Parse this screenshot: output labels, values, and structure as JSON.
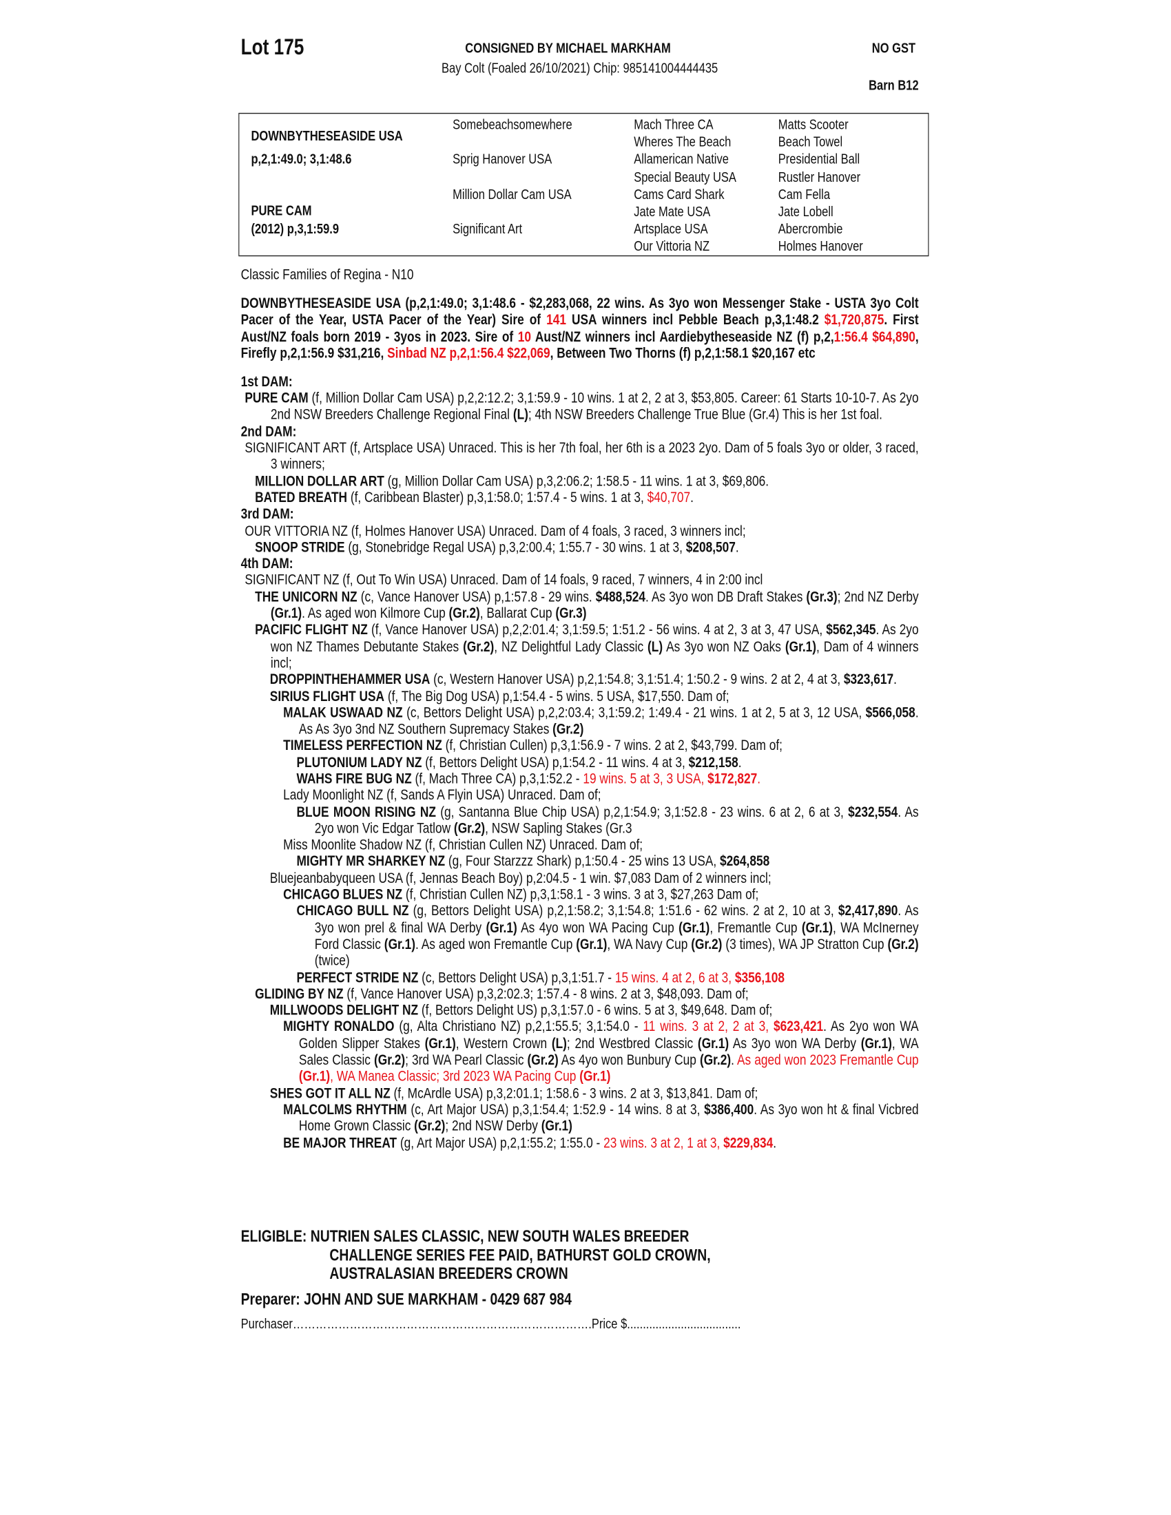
{
  "header": {
    "lot": "Lot 175",
    "consigned": "CONSIGNED BY MICHAEL MARKHAM",
    "description": "Bay Colt (Foaled 26/10/2021) Chip: 985141004444435",
    "gst": "NO GST",
    "barn": "Barn B12"
  },
  "pedigree": {
    "sire": "DOWNBYTHESEASIDE USA",
    "sire_record": "p,2,1:49.0; 3,1:48.6",
    "dam": "PURE CAM",
    "dam_record": "(2012) p,3,1:59.9",
    "gen2": [
      "Somebeachsomewhere",
      "Sprig Hanover USA",
      "Million Dollar Cam USA",
      "Significant Art"
    ],
    "gen3": [
      "Mach Three CA",
      "Wheres The Beach",
      "Allamerican Native",
      "Special Beauty USA",
      "Cams Card Shark",
      "Jate Mate USA",
      "Artsplace USA",
      "Our Vittoria NZ"
    ],
    "gen4": [
      "Matts Scooter",
      "Beach Towel",
      "Presidential Ball",
      "Rustler Hanover",
      "Cam Fella",
      "Jate Lobell",
      "Abercrombie",
      "Holmes Hanover"
    ]
  },
  "family": "Classic Families of Regina - N10",
  "colors": {
    "highlight": "#e8141b",
    "text": "#111111"
  },
  "sire_paragraph": [
    {
      "t": "DOWNBYTHESEASIDE USA (p,2,1:49.0; 3,1:48.6 - $2,283,068, 22 wins. As 3yo won Messenger Stake - USTA 3yo Colt Pacer of the Year, USTA Pacer of the Year) Sire of ",
      "s": ""
    },
    {
      "t": "141",
      "s": "r"
    },
    {
      "t": " USA winners incl Pebble Beach p,3,1:48.2 ",
      "s": ""
    },
    {
      "t": "$1,720,875",
      "s": "r"
    },
    {
      "t": ". First Aust/NZ foals born 2019 - 3yos in 2023. Sire of ",
      "s": ""
    },
    {
      "t": "10",
      "s": "r"
    },
    {
      "t": " Aust/NZ winners incl Aardiebytheseaside NZ (f) p,2,",
      "s": ""
    },
    {
      "t": "1:56.4 $64,890",
      "s": "r"
    },
    {
      "t": ", Firefly p,2,1:56.9 $31,216, ",
      "s": ""
    },
    {
      "t": "Sinbad NZ p,2,1:56.4 $22,069",
      "s": "r"
    },
    {
      "t": ", Between Two Thorns (f) p,2,1:58.1 $20,167 etc",
      "s": ""
    }
  ],
  "entries": [
    {
      "level": "h",
      "segs": [
        {
          "t": "1st DAM:",
          "s": ""
        }
      ]
    },
    {
      "level": 0,
      "segs": [
        {
          "t": "PURE CAM",
          "s": "b"
        },
        {
          "t": " (f, Million Dollar Cam USA) p,2,2:12.2; 3,1:59.9 - 10 wins. 1 at 2, 2 at 3, $53,805. Career: 61 Starts 10-10-7. As 2yo 2nd NSW Breeders Challenge Regional Final ",
          "s": ""
        },
        {
          "t": "(L)",
          "s": "b"
        },
        {
          "t": "; 4th NSW Breeders Challenge True Blue (Gr.4) This is her 1st foal.",
          "s": ""
        }
      ]
    },
    {
      "level": "h",
      "segs": [
        {
          "t": "2nd DAM:",
          "s": ""
        }
      ]
    },
    {
      "level": 0,
      "segs": [
        {
          "t": "SIGNIFICANT ART (f, Artsplace USA) Unraced. This is her 7th foal, her 6th is a 2023 2yo. Dam of 5 foals 3yo or older, 3 raced, 3 winners;",
          "s": ""
        }
      ]
    },
    {
      "level": 1,
      "segs": [
        {
          "t": "MILLION DOLLAR ART",
          "s": "b"
        },
        {
          "t": " (g, Million Dollar Cam USA) p,3,2:06.2; 1:58.5 - 11 wins. 1 at 3, $69,806.",
          "s": ""
        }
      ]
    },
    {
      "level": 1,
      "segs": [
        {
          "t": "BATED BREATH",
          "s": "b"
        },
        {
          "t": " (f, Caribbean Blaster) p,3,1:58.0; 1:57.4 - 5 wins. 1 at 3, ",
          "s": ""
        },
        {
          "t": "$40,707",
          "s": "r"
        },
        {
          "t": ".",
          "s": ""
        }
      ]
    },
    {
      "level": "h",
      "segs": [
        {
          "t": "3rd DAM:",
          "s": ""
        }
      ]
    },
    {
      "level": 0,
      "segs": [
        {
          "t": "OUR VITTORIA NZ (f, Holmes Hanover USA) Unraced. Dam of 4 foals, 3 raced, 3 winners incl;",
          "s": ""
        }
      ]
    },
    {
      "level": 1,
      "segs": [
        {
          "t": "SNOOP STRIDE",
          "s": "b"
        },
        {
          "t": " (g, Stonebridge Regal USA) p,3,2:00.4; 1:55.7 - 30 wins. 1 at 3, ",
          "s": ""
        },
        {
          "t": "$208,507",
          "s": "b"
        },
        {
          "t": ".",
          "s": ""
        }
      ]
    },
    {
      "level": "h",
      "segs": [
        {
          "t": "4th DAM:",
          "s": ""
        }
      ]
    },
    {
      "level": 0,
      "segs": [
        {
          "t": "SIGNIFICANT NZ (f, Out To Win USA) Unraced. Dam of 14 foals, 9 raced, 7 winners, 4 in 2:00 incl",
          "s": ""
        }
      ]
    },
    {
      "level": 1,
      "segs": [
        {
          "t": "THE UNICORN NZ",
          "s": "b"
        },
        {
          "t": " (c, Vance Hanover USA) p,1:57.8 - 29 wins. ",
          "s": ""
        },
        {
          "t": "$488,524",
          "s": "b"
        },
        {
          "t": ". As 3yo won DB Draft Stakes ",
          "s": ""
        },
        {
          "t": "(Gr.3)",
          "s": "b"
        },
        {
          "t": "; 2nd NZ Derby ",
          "s": ""
        },
        {
          "t": "(Gr.1)",
          "s": "b"
        },
        {
          "t": ". As aged won Kilmore Cup ",
          "s": ""
        },
        {
          "t": "(Gr.2)",
          "s": "b"
        },
        {
          "t": ", Ballarat Cup ",
          "s": ""
        },
        {
          "t": "(Gr.3)",
          "s": "b"
        }
      ]
    },
    {
      "level": 1,
      "segs": [
        {
          "t": "PACIFIC FLIGHT NZ",
          "s": "b"
        },
        {
          "t": " (f, Vance Hanover USA) p,2,2:01.4; 3,1:59.5; 1:51.2 - 56 wins. 4 at 2, 3 at 3, 47 USA, ",
          "s": ""
        },
        {
          "t": "$562,345",
          "s": "b"
        },
        {
          "t": ". As 2yo won NZ Thames Debutante Stakes ",
          "s": ""
        },
        {
          "t": "(Gr.2)",
          "s": "b"
        },
        {
          "t": ", NZ Delightful Lady Classic ",
          "s": ""
        },
        {
          "t": "(L)",
          "s": "b"
        },
        {
          "t": " As 3yo won NZ Oaks ",
          "s": ""
        },
        {
          "t": "(Gr.1)",
          "s": "b"
        },
        {
          "t": ", Dam of 4 winners incl;",
          "s": ""
        }
      ]
    },
    {
      "level": 2,
      "segs": [
        {
          "t": "DROPPINTHEHAMMER USA",
          "s": "b"
        },
        {
          "t": " (c, Western Hanover USA) p,2,1:54.8; 3,1:51.4; 1:50.2 - 9 wins. 2 at 2, 4 at 3, ",
          "s": ""
        },
        {
          "t": "$323,617",
          "s": "b"
        },
        {
          "t": ".",
          "s": ""
        }
      ]
    },
    {
      "level": 2,
      "segs": [
        {
          "t": "SIRIUS FLIGHT USA",
          "s": "b"
        },
        {
          "t": " (f, The Big Dog USA) p,1:54.4 - 5 wins. 5 USA, $17,550. Dam of;",
          "s": ""
        }
      ]
    },
    {
      "level": 3,
      "segs": [
        {
          "t": "MALAK USWAAD NZ",
          "s": "b"
        },
        {
          "t": " (c, Bettors Delight USA) p,2,2:03.4; 3,1:59.2; 1:49.4 - 21 wins. 1 at 2, 5 at 3, 12 USA, ",
          "s": ""
        },
        {
          "t": "$566,058",
          "s": "b"
        },
        {
          "t": ". As As 3yo 3nd NZ Southern Supremacy Stakes ",
          "s": ""
        },
        {
          "t": "(Gr.2)",
          "s": "b"
        }
      ]
    },
    {
      "level": 3,
      "segs": [
        {
          "t": "TIMELESS PERFECTION NZ",
          "s": "b"
        },
        {
          "t": " (f, Christian Cullen) p,3,1:56.9 - 7 wins. 2 at 2, $43,799. Dam of;",
          "s": ""
        }
      ]
    },
    {
      "level": 4,
      "segs": [
        {
          "t": "PLUTONIUM LADY NZ",
          "s": "b"
        },
        {
          "t": " (f, Bettors Delight USA) p,1:54.2 - 11 wins. 4 at 3, ",
          "s": ""
        },
        {
          "t": "$212,158",
          "s": "b"
        },
        {
          "t": ".",
          "s": ""
        }
      ]
    },
    {
      "level": 4,
      "segs": [
        {
          "t": "WAHS FIRE BUG NZ",
          "s": "b"
        },
        {
          "t": " (f, Mach Three CA) p,3,1:52.2 - ",
          "s": ""
        },
        {
          "t": "19 wins. 5 at 3, 3 USA, ",
          "s": "r"
        },
        {
          "t": "$172,827",
          "s": "rb"
        },
        {
          "t": ".",
          "s": "r"
        }
      ]
    },
    {
      "level": 3,
      "segs": [
        {
          "t": "Lady Moonlight NZ (f, Sands A Flyin USA) Unraced. Dam of;",
          "s": ""
        }
      ]
    },
    {
      "level": 4,
      "segs": [
        {
          "t": "BLUE MOON RISING NZ",
          "s": "b"
        },
        {
          "t": " (g, Santanna Blue Chip USA) p,2,1:54.9; 3,1:52.8 - 23 wins. 6 at 2, 6 at 3, ",
          "s": ""
        },
        {
          "t": "$232,554",
          "s": "b"
        },
        {
          "t": ". As 2yo won Vic Edgar Tatlow ",
          "s": ""
        },
        {
          "t": "(Gr.2)",
          "s": "b"
        },
        {
          "t": ", NSW Sapling Stakes (Gr.3",
          "s": ""
        }
      ]
    },
    {
      "level": 3,
      "segs": [
        {
          "t": "Miss Moonlite Shadow NZ (f, Christian Cullen NZ) Unraced. Dam of;",
          "s": ""
        }
      ]
    },
    {
      "level": 4,
      "segs": [
        {
          "t": "MIGHTY MR SHARKEY NZ",
          "s": "b"
        },
        {
          "t": " (g, Four Starzzz Shark) p,1:50.4 - 25 wins 13 USA, ",
          "s": ""
        },
        {
          "t": "$264,858",
          "s": "b"
        }
      ]
    },
    {
      "level": 2,
      "segs": [
        {
          "t": "Bluejeanbabyqueen USA (f, Jennas Beach Boy) p,2:04.5 - 1 win. $7,083 Dam of 2 winners incl;",
          "s": ""
        }
      ]
    },
    {
      "level": 3,
      "segs": [
        {
          "t": "CHICAGO BLUES NZ",
          "s": "b"
        },
        {
          "t": " (f, Christian Cullen NZ) p,3,1:58.1 - 3 wins. 3 at 3, $27,263 Dam of;",
          "s": ""
        }
      ]
    },
    {
      "level": 4,
      "segs": [
        {
          "t": "CHICAGO BULL NZ",
          "s": "b"
        },
        {
          "t": " (g, Bettors Delight USA) p,2,1:58.2; 3,1:54.8; 1:51.6 - 62 wins. 2 at 2, 10 at 3, ",
          "s": ""
        },
        {
          "t": "$2,417,890",
          "s": "b"
        },
        {
          "t": ". As 3yo won prel & final WA Derby ",
          "s": ""
        },
        {
          "t": "(Gr.1)",
          "s": "b"
        },
        {
          "t": " As 4yo won WA Pacing Cup ",
          "s": ""
        },
        {
          "t": "(Gr.1)",
          "s": "b"
        },
        {
          "t": ", Fremantle Cup ",
          "s": ""
        },
        {
          "t": "(Gr.1)",
          "s": "b"
        },
        {
          "t": ", WA McInerney Ford Classic ",
          "s": ""
        },
        {
          "t": "(Gr.1)",
          "s": "b"
        },
        {
          "t": ". As aged won Fremantle Cup ",
          "s": ""
        },
        {
          "t": "(Gr.1)",
          "s": "b"
        },
        {
          "t": ", WA Navy Cup ",
          "s": ""
        },
        {
          "t": "(Gr.2)",
          "s": "b"
        },
        {
          "t": " (3 times), WA JP Stratton Cup ",
          "s": ""
        },
        {
          "t": "(Gr.2)",
          "s": "b"
        },
        {
          "t": " (twice)",
          "s": ""
        }
      ]
    },
    {
      "level": 4,
      "segs": [
        {
          "t": "PERFECT STRIDE NZ",
          "s": "b"
        },
        {
          "t": " (c, Bettors Delight USA) p,3,1:51.7 - ",
          "s": ""
        },
        {
          "t": "15 wins. 4 at 2, 6 at 3, ",
          "s": "r"
        },
        {
          "t": "$356,108",
          "s": "rb"
        }
      ]
    },
    {
      "level": 1,
      "segs": [
        {
          "t": "GLIDING BY NZ",
          "s": "b"
        },
        {
          "t": " (f, Vance Hanover USA) p,3,2:02.3; 1:57.4 - 8 wins. 2 at 3, $48,093. Dam of;",
          "s": ""
        }
      ]
    },
    {
      "level": 2,
      "segs": [
        {
          "t": "MILLWOODS DELIGHT NZ",
          "s": "b"
        },
        {
          "t": " (f, Bettors Delight US) p,3,1:57.0 - 6 wins. 5 at 3, $49,648. Dam of;",
          "s": ""
        }
      ]
    },
    {
      "level": 3,
      "segs": [
        {
          "t": "MIGHTY RONALDO",
          "s": "b"
        },
        {
          "t": " (g, Alta Christiano NZ) p,2,1:55.5; 3,1:54.0 - ",
          "s": ""
        },
        {
          "t": "11 wins. 3 at 2, 2 at 3, ",
          "s": "r"
        },
        {
          "t": "$623,421",
          "s": "rb"
        },
        {
          "t": ". As 2yo won WA Golden Slipper Stakes ",
          "s": ""
        },
        {
          "t": "(Gr.1)",
          "s": "b"
        },
        {
          "t": ", Western Crown ",
          "s": ""
        },
        {
          "t": "(L)",
          "s": "b"
        },
        {
          "t": "; 2nd Westbred Classic ",
          "s": ""
        },
        {
          "t": "(Gr.1)",
          "s": "b"
        },
        {
          "t": " As 3yo won WA Derby ",
          "s": ""
        },
        {
          "t": "(Gr.1)",
          "s": "b"
        },
        {
          "t": ", WA Sales Classic ",
          "s": ""
        },
        {
          "t": "(Gr.2)",
          "s": "b"
        },
        {
          "t": "; 3rd WA Pearl Classic ",
          "s": ""
        },
        {
          "t": "(Gr.2)",
          "s": "b"
        },
        {
          "t": " As 4yo won Bunbury Cup ",
          "s": ""
        },
        {
          "t": "(Gr.2)",
          "s": "b"
        },
        {
          "t": ". ",
          "s": ""
        },
        {
          "t": "As aged won 2023 Fremantle Cup ",
          "s": "r"
        },
        {
          "t": "(Gr.1)",
          "s": "rb"
        },
        {
          "t": ", WA Manea Classic; 3rd 2023 WA Pacing Cup ",
          "s": "r"
        },
        {
          "t": "(Gr.1)",
          "s": "rb"
        }
      ]
    },
    {
      "level": 2,
      "segs": [
        {
          "t": "SHES GOT IT ALL NZ",
          "s": "b"
        },
        {
          "t": " (f, McArdle USA) p,3,2:01.1; 1:58.6 - 3 wins. 2 at 3, $13,841. Dam of;",
          "s": ""
        }
      ]
    },
    {
      "level": 3,
      "segs": [
        {
          "t": "MALCOLMS RHYTHM",
          "s": "b"
        },
        {
          "t": " (c, Art Major USA) p,3,1:54.4; 1:52.9 - 14 wins. 8 at 3, ",
          "s": ""
        },
        {
          "t": "$386,400",
          "s": "b"
        },
        {
          "t": ". As 3yo won ht & final Vicbred Home Grown Classic ",
          "s": ""
        },
        {
          "t": "(Gr.2)",
          "s": "b"
        },
        {
          "t": "; 2nd NSW Derby ",
          "s": ""
        },
        {
          "t": "(Gr.1)",
          "s": "b"
        }
      ]
    },
    {
      "level": 3,
      "segs": [
        {
          "t": "BE MAJOR THREAT",
          "s": "b"
        },
        {
          "t": " (g, Art Major USA) p,2,1:55.2; 1:55.0 - ",
          "s": ""
        },
        {
          "t": "23 wins. 3 at 2, 1 at 3, ",
          "s": "r"
        },
        {
          "t": "$229,834",
          "s": "rb"
        },
        {
          "t": ".",
          "s": ""
        }
      ]
    }
  ],
  "eligible": {
    "lines": [
      "ELIGIBLE: NUTRIEN SALES CLASSIC, NEW SOUTH WALES BREEDER",
      "CHALLENGE SERIES FEE PAID, BATHURST GOLD CROWN,",
      "AUSTRALASIAN BREEDERS CROWN"
    ]
  },
  "preparer": "Preparer: JOHN AND SUE MARKHAM - 0429 687 984",
  "purchaser": "Purchaser…………………………………………………………………….Price $...................................."
}
